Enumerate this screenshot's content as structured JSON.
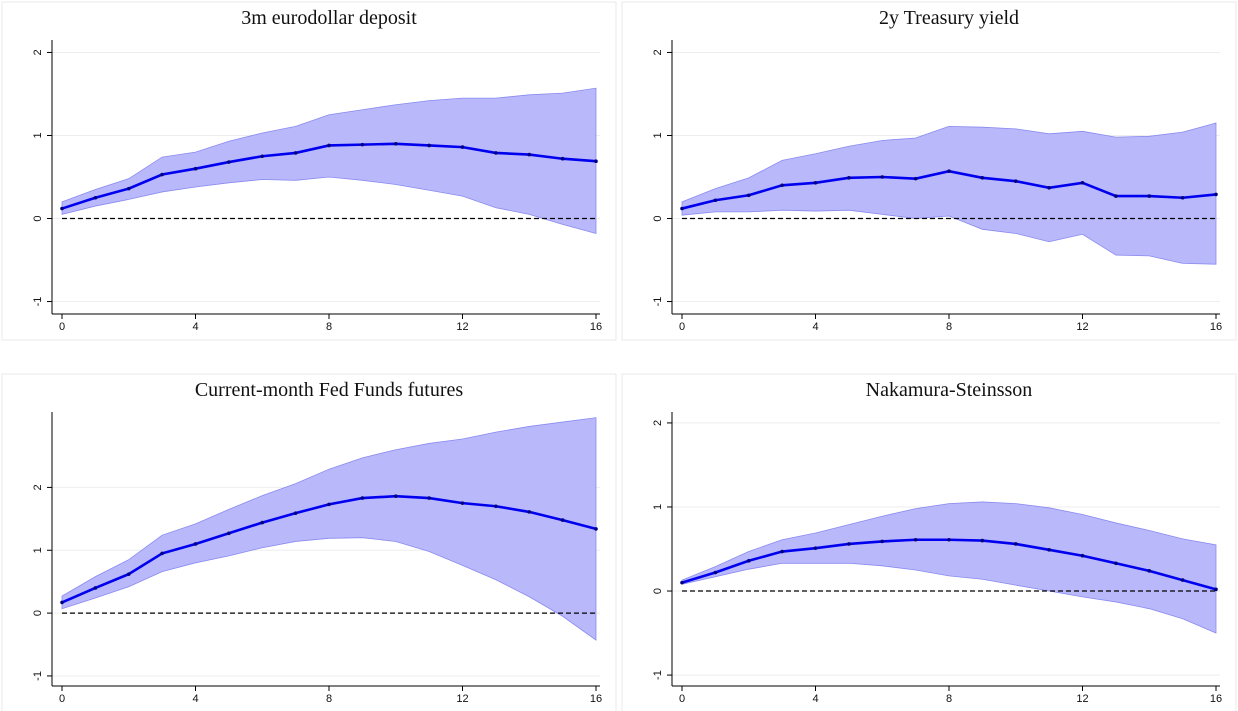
{
  "chart_data": [
    {
      "type": "line",
      "title": "3m eurodollar deposit",
      "x": [
        0,
        1,
        2,
        3,
        4,
        5,
        6,
        7,
        8,
        9,
        10,
        11,
        12,
        13,
        14,
        15,
        16
      ],
      "values": [
        0.12,
        0.25,
        0.36,
        0.53,
        0.6,
        0.68,
        0.75,
        0.79,
        0.88,
        0.89,
        0.9,
        0.88,
        0.86,
        0.79,
        0.77,
        0.72,
        0.69
      ],
      "upper": [
        0.2,
        0.35,
        0.48,
        0.74,
        0.8,
        0.93,
        1.03,
        1.11,
        1.25,
        1.31,
        1.37,
        1.42,
        1.45,
        1.45,
        1.49,
        1.51,
        1.57
      ],
      "lower": [
        0.05,
        0.15,
        0.23,
        0.32,
        0.38,
        0.43,
        0.47,
        0.46,
        0.5,
        0.46,
        0.41,
        0.34,
        0.27,
        0.13,
        0.05,
        -0.07,
        -0.18
      ],
      "color": "#0000ee",
      "band_color": "#b8b8fb",
      "reference_line": 0,
      "xlim": [
        0,
        16
      ],
      "xticks": [
        0,
        4,
        8,
        12,
        16
      ],
      "ylim": [
        -1.15,
        2.15
      ],
      "yticks": [
        -1,
        0,
        1,
        2
      ],
      "grid": true
    },
    {
      "type": "line",
      "title": "2y Treasury yield",
      "x": [
        0,
        1,
        2,
        3,
        4,
        5,
        6,
        7,
        8,
        9,
        10,
        11,
        12,
        13,
        14,
        15,
        16
      ],
      "values": [
        0.12,
        0.22,
        0.28,
        0.4,
        0.43,
        0.49,
        0.5,
        0.48,
        0.57,
        0.49,
        0.45,
        0.37,
        0.43,
        0.27,
        0.27,
        0.25,
        0.29
      ],
      "upper": [
        0.2,
        0.36,
        0.49,
        0.7,
        0.78,
        0.87,
        0.94,
        0.97,
        1.11,
        1.1,
        1.08,
        1.02,
        1.05,
        0.98,
        0.99,
        1.04,
        1.15
      ],
      "lower": [
        0.04,
        0.08,
        0.08,
        0.1,
        0.09,
        0.1,
        0.05,
        0.0,
        0.03,
        -0.13,
        -0.18,
        -0.28,
        -0.19,
        -0.44,
        -0.45,
        -0.54,
        -0.55
      ],
      "color": "#0000ee",
      "band_color": "#b8b8fb",
      "reference_line": 0,
      "xlim": [
        0,
        16
      ],
      "xticks": [
        0,
        4,
        8,
        12,
        16
      ],
      "ylim": [
        -1.15,
        2.15
      ],
      "yticks": [
        -1,
        0,
        1,
        2
      ],
      "grid": true
    },
    {
      "type": "line",
      "title": "Current-month Fed Funds futures",
      "x": [
        0,
        1,
        2,
        3,
        4,
        5,
        6,
        7,
        8,
        9,
        10,
        11,
        12,
        13,
        14,
        15,
        16
      ],
      "values": [
        0.17,
        0.4,
        0.62,
        0.95,
        1.1,
        1.27,
        1.44,
        1.59,
        1.73,
        1.83,
        1.86,
        1.83,
        1.75,
        1.7,
        1.61,
        1.48,
        1.34
      ],
      "upper": [
        0.27,
        0.58,
        0.85,
        1.24,
        1.42,
        1.65,
        1.87,
        2.06,
        2.29,
        2.47,
        2.6,
        2.7,
        2.77,
        2.88,
        2.97,
        3.04,
        3.11
      ],
      "lower": [
        0.07,
        0.24,
        0.42,
        0.66,
        0.8,
        0.91,
        1.04,
        1.14,
        1.19,
        1.2,
        1.14,
        0.98,
        0.76,
        0.53,
        0.26,
        -0.05,
        -0.43
      ],
      "color": "#0000ee",
      "band_color": "#b8b8fb",
      "reference_line": 0,
      "xlim": [
        0,
        16
      ],
      "xticks": [
        0,
        4,
        8,
        12,
        16
      ],
      "ylim": [
        -1.16,
        3.2
      ],
      "yticks": [
        -1,
        0,
        1,
        2
      ],
      "grid": true
    },
    {
      "type": "line",
      "title": "Nakamura-Steinsson",
      "x": [
        0,
        1,
        2,
        3,
        4,
        5,
        6,
        7,
        8,
        9,
        10,
        11,
        12,
        13,
        14,
        15,
        16
      ],
      "values": [
        0.1,
        0.22,
        0.36,
        0.47,
        0.51,
        0.56,
        0.59,
        0.61,
        0.61,
        0.6,
        0.56,
        0.49,
        0.42,
        0.33,
        0.24,
        0.13,
        0.02
      ],
      "upper": [
        0.13,
        0.29,
        0.47,
        0.61,
        0.69,
        0.79,
        0.89,
        0.98,
        1.04,
        1.06,
        1.04,
        0.99,
        0.91,
        0.81,
        0.72,
        0.62,
        0.55
      ],
      "lower": [
        0.08,
        0.17,
        0.26,
        0.33,
        0.33,
        0.33,
        0.3,
        0.25,
        0.18,
        0.14,
        0.07,
        0.0,
        -0.07,
        -0.13,
        -0.21,
        -0.33,
        -0.5
      ],
      "color": "#0000ee",
      "band_color": "#b8b8fb",
      "reference_line": 0,
      "xlim": [
        0,
        16
      ],
      "xticks": [
        0,
        4,
        8,
        12,
        16
      ],
      "ylim": [
        -1.13,
        2.13
      ],
      "yticks": [
        -1,
        0,
        1,
        2
      ],
      "grid": true
    }
  ]
}
